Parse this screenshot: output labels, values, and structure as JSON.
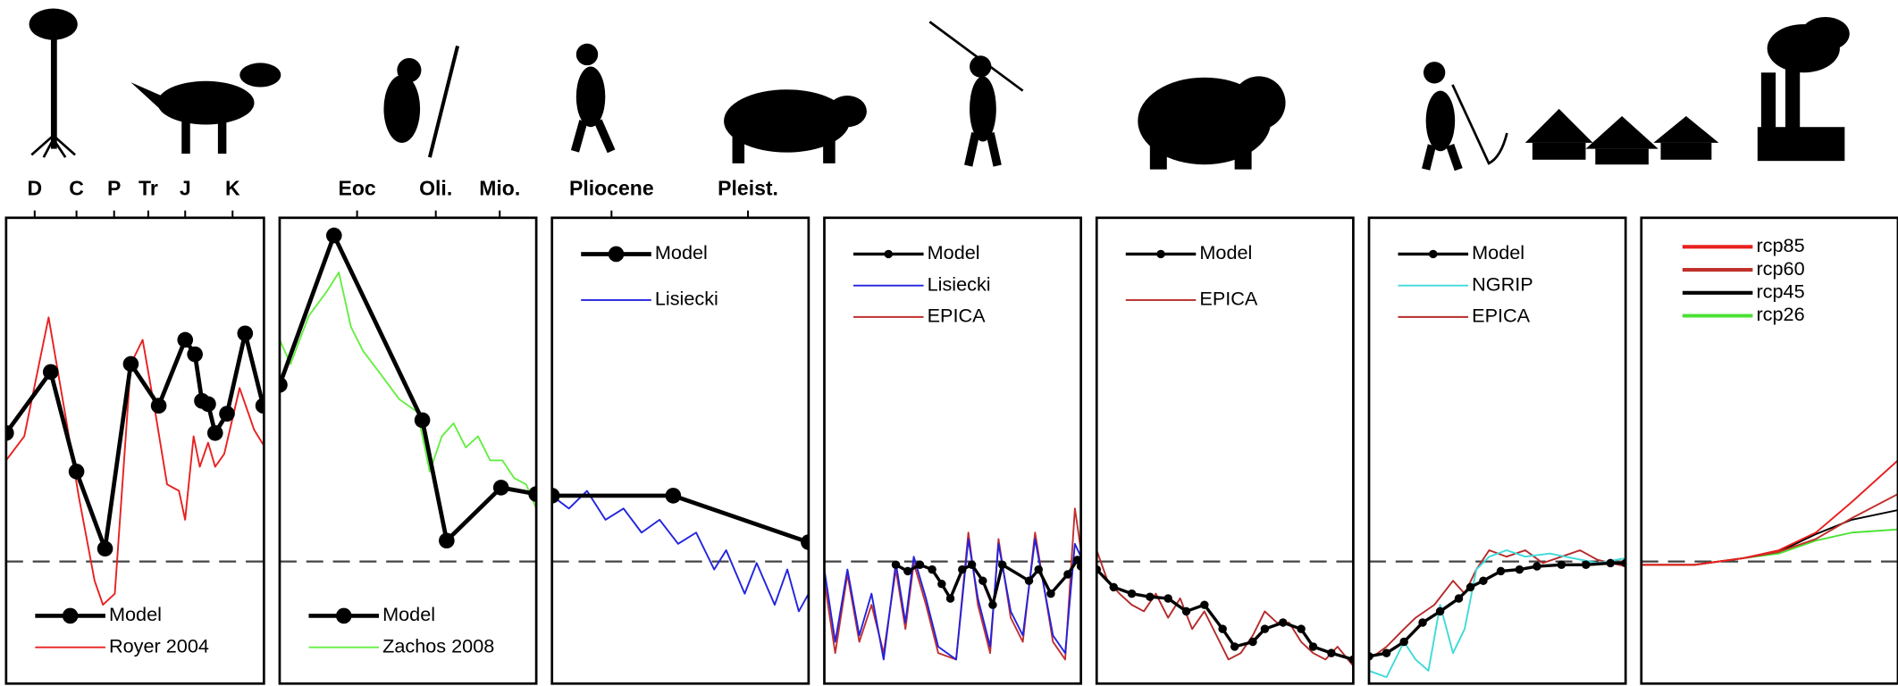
{
  "chart_data": [
    {
      "type": "line",
      "xlim": [
        430,
        60
      ],
      "ylim": [
        -7.6,
        21.4
      ],
      "hline": 0,
      "legend": "lower left",
      "xticks": [
        {
          "value": 389,
          "label": "D"
        },
        {
          "value": 329,
          "label": "C"
        },
        {
          "value": 275,
          "label": "P"
        },
        {
          "value": 226,
          "label": "Tr"
        },
        {
          "value": 173,
          "label": "J"
        },
        {
          "value": 105,
          "label": "K"
        }
      ],
      "series": [
        {
          "name": "Model",
          "color": "#000000",
          "marker": true,
          "x": [
            430,
            366,
            329,
            288,
            251,
            211,
            173,
            159,
            149,
            140,
            130,
            113,
            87,
            61
          ],
          "values": [
            8.0,
            11.8,
            5.6,
            0.8,
            12.3,
            9.7,
            13.8,
            12.9,
            10.0,
            9.8,
            8.0,
            9.2,
            14.2,
            9.7
          ]
        },
        {
          "name": "Royer 2004",
          "color": "#e82020",
          "marker": false,
          "x": [
            430,
            404,
            369,
            343,
            326,
            303,
            291,
            274,
            251,
            234,
            216,
            199,
            182,
            173,
            161,
            152,
            140,
            130,
            117,
            95,
            74,
            60
          ],
          "values": [
            6.3,
            7.8,
            15.2,
            8.6,
            4.1,
            -1.2,
            -2.7,
            -2.0,
            12.3,
            13.8,
            9.3,
            4.8,
            4.4,
            2.6,
            7.8,
            5.9,
            7.4,
            5.9,
            6.7,
            10.8,
            8.2,
            7.2
          ]
        }
      ]
    },
    {
      "type": "line",
      "xlim": [
        65,
        6
      ],
      "ylim": [
        -7.6,
        21.4
      ],
      "hline": 0,
      "legend": "lower left",
      "xticks": [
        {
          "value": 47.2,
          "label": "Eoc"
        },
        {
          "value": 29.1,
          "label": "Oli."
        },
        {
          "value": 14.4,
          "label": "Mio."
        }
      ],
      "series": [
        {
          "name": "Model",
          "color": "#000000",
          "marker": true,
          "x": [
            65,
            52.5,
            32.2,
            26.6,
            14.1,
            6.0
          ],
          "values": [
            11.0,
            20.3,
            8.8,
            1.3,
            4.6,
            4.2
          ]
        },
        {
          "name": "Zachos 2008",
          "color": "#66ee44",
          "marker": false,
          "x": [
            65,
            62.5,
            58.3,
            54.2,
            51.4,
            48.6,
            45.8,
            41.6,
            37.5,
            33.3,
            30.5,
            27.7,
            25.0,
            22.2,
            19.4,
            16.6,
            13.8,
            11.1,
            8.3,
            6.0
          ],
          "values": [
            13.8,
            12.3,
            15.3,
            16.8,
            18.0,
            14.6,
            13.1,
            11.6,
            10.1,
            9.3,
            5.6,
            7.8,
            8.6,
            7.1,
            7.8,
            6.3,
            6.3,
            5.2,
            4.8,
            3.3
          ]
        }
      ]
    },
    {
      "type": "line",
      "xlim": [
        5.3,
        0.6
      ],
      "ylim": [
        -7.6,
        21.4
      ],
      "hline": 0,
      "legend": "upper left",
      "xticks": [
        {
          "value": 4.21,
          "label": "Pliocene"
        },
        {
          "value": 1.71,
          "label": "Pleist."
        }
      ],
      "series": [
        {
          "name": "Model",
          "color": "#000000",
          "marker": true,
          "x": [
            5.3,
            3.08,
            0.6
          ],
          "values": [
            4.1,
            4.1,
            1.2
          ]
        },
        {
          "name": "Lisiecki",
          "color": "#2222dd",
          "marker": false,
          "x": [
            5.3,
            4.99,
            4.66,
            4.32,
            3.99,
            3.66,
            3.33,
            2.99,
            2.66,
            2.33,
            2.11,
            1.77,
            1.55,
            1.22,
            0.99,
            0.78,
            0.6
          ],
          "values": [
            4.1,
            3.3,
            4.4,
            2.6,
            3.3,
            1.8,
            2.6,
            1.1,
            1.8,
            -0.5,
            0.7,
            -2.0,
            -0.1,
            -2.7,
            -0.5,
            -3.1,
            -2.0
          ]
        }
      ]
    },
    {
      "type": "line",
      "xlim": [
        800,
        0
      ],
      "ylim": [
        -7.6,
        21.4
      ],
      "hline": 0,
      "legend": "upper left",
      "series": [
        {
          "name": "Model",
          "color": "#000000",
          "marker": true,
          "x": [
            577,
            540,
            502,
            464,
            434,
            407,
            370,
            340,
            306,
            275,
            245,
            162,
            132,
            94,
            41,
            11,
            0
          ],
          "values": [
            -0.2,
            -0.6,
            -0.2,
            -0.5,
            -1.4,
            -2.3,
            -0.5,
            -0.2,
            -1.2,
            -2.7,
            -0.2,
            -1.2,
            -0.5,
            -2.0,
            -0.8,
            0.1,
            -0.3
          ]
        },
        {
          "name": "Lisiecki",
          "color": "#2222dd",
          "marker": false,
          "x": [
            800,
            766,
            728,
            691,
            653,
            615,
            577,
            547,
            521,
            483,
            445,
            389,
            351,
            321,
            283,
            257,
            219,
            181,
            143,
            87,
            49,
            19,
            0
          ],
          "values": [
            -0.5,
            -5.0,
            -0.5,
            -4.6,
            -2.0,
            -6.1,
            -0.1,
            -3.8,
            0.3,
            -2.3,
            -5.3,
            -6.1,
            1.4,
            -2.3,
            -5.3,
            1.1,
            -3.1,
            -4.6,
            1.4,
            -4.6,
            -5.7,
            1.1,
            0.3
          ]
        },
        {
          "name": "EPICA",
          "color": "#c03030",
          "marker": false,
          "x": [
            800,
            766,
            728,
            691,
            653,
            615,
            577,
            547,
            521,
            483,
            445,
            389,
            351,
            321,
            283,
            257,
            219,
            181,
            143,
            87,
            49,
            19,
            0
          ],
          "values": [
            -1.2,
            -5.7,
            -0.8,
            -5.0,
            -2.7,
            -5.7,
            -0.5,
            -4.2,
            -0.1,
            -2.7,
            -5.7,
            -6.1,
            1.8,
            -2.7,
            -5.7,
            1.4,
            -3.5,
            -5.0,
            1.8,
            -5.0,
            -6.1,
            3.3,
            0.7
          ]
        }
      ]
    },
    {
      "type": "line",
      "xlim": [
        130,
        0
      ],
      "ylim": [
        -7.6,
        21.4
      ],
      "hline": 0,
      "legend": "upper left",
      "series": [
        {
          "name": "Model",
          "color": "#000000",
          "marker": true,
          "x": [
            130,
            121.4,
            112.2,
            103.0,
            93.8,
            84.6,
            75.4,
            66.2,
            60.1,
            50.9,
            44.8,
            35.6,
            26.4,
            20.3,
            11.1,
            0
          ],
          "values": [
            -0.5,
            -1.6,
            -2.0,
            -2.2,
            -2.3,
            -3.1,
            -2.7,
            -4.2,
            -5.3,
            -5.0,
            -4.2,
            -3.8,
            -4.2,
            -5.3,
            -5.7,
            -6.1
          ]
        },
        {
          "name": "EPICA",
          "color": "#b52a2a",
          "marker": false,
          "x": [
            130,
            124.5,
            118.4,
            112.2,
            106.1,
            100.0,
            93.8,
            87.7,
            81.6,
            75.4,
            69.3,
            63.2,
            57.0,
            50.9,
            44.8,
            38.7,
            32.5,
            26.4,
            20.3,
            14.1,
            8.0,
            0
          ],
          "values": [
            0.7,
            -1.2,
            -2.0,
            -2.7,
            -3.1,
            -2.0,
            -3.5,
            -2.3,
            -4.2,
            -3.1,
            -4.6,
            -6.1,
            -5.7,
            -4.6,
            -3.1,
            -3.8,
            -3.8,
            -5.0,
            -5.7,
            -6.1,
            -5.3,
            -6.5
          ]
        }
      ]
    },
    {
      "type": "line",
      "xlim": [
        22,
        0
      ],
      "ylim": [
        -7.6,
        21.4
      ],
      "hline": 0,
      "legend": "upper left",
      "series": [
        {
          "name": "Model",
          "color": "#000000",
          "marker": true,
          "x": [
            22,
            20.5,
            19.0,
            17.4,
            15.9,
            14.3,
            13.3,
            12.2,
            10.7,
            9.1,
            7.6,
            5.5,
            3.4,
            1.3,
            0
          ],
          "values": [
            -5.9,
            -5.7,
            -5.0,
            -3.8,
            -3.1,
            -2.3,
            -1.6,
            -1.2,
            -0.6,
            -0.5,
            -0.3,
            -0.2,
            -0.2,
            -0.1,
            -0.1
          ]
        },
        {
          "name": "NGRIP",
          "color": "#40d9d9",
          "marker": false,
          "x": [
            22,
            20.5,
            19.0,
            18.0,
            16.9,
            15.9,
            14.8,
            13.8,
            12.8,
            11.7,
            10.2,
            8.6,
            6.5,
            4.5,
            2.4,
            0
          ],
          "values": [
            -6.8,
            -7.2,
            -5.0,
            -6.1,
            -6.8,
            -2.7,
            -5.7,
            -4.2,
            -0.5,
            0.3,
            0.7,
            0.3,
            0.5,
            0.2,
            -0.1,
            0.2
          ]
        },
        {
          "name": "EPICA",
          "color": "#b52a2a",
          "marker": false,
          "x": [
            22,
            20.5,
            19.0,
            18.0,
            16.4,
            14.8,
            13.8,
            12.8,
            11.7,
            10.2,
            8.6,
            7.1,
            5.5,
            3.9,
            2.4,
            0
          ],
          "values": [
            -6.1,
            -5.3,
            -4.2,
            -3.5,
            -2.7,
            -1.2,
            -2.0,
            -0.5,
            0.7,
            0.3,
            0.7,
            -0.1,
            0.3,
            0.7,
            0.1,
            -0.3
          ]
        }
      ]
    },
    {
      "type": "line",
      "xlim": [
        1850,
        2100
      ],
      "ylim": [
        -7.6,
        21.4
      ],
      "hline": 0,
      "legend": "upper left",
      "series": [
        {
          "name": "rcp85",
          "color": "#e8201f",
          "marker": false,
          "x": [
            1850,
            1902,
            1949,
            1984,
            2020,
            2055,
            2100
          ],
          "values": [
            -0.2,
            -0.2,
            0.2,
            0.7,
            1.8,
            3.7,
            6.3
          ]
        },
        {
          "name": "rcp60",
          "color": "#c0302a",
          "marker": false,
          "x": [
            1850,
            1902,
            1949,
            1984,
            2020,
            2055,
            2100
          ],
          "values": [
            -0.2,
            -0.2,
            0.2,
            0.6,
            1.4,
            2.7,
            4.2
          ]
        },
        {
          "name": "rcp45",
          "color": "#000000",
          "marker": false,
          "x": [
            1850,
            1902,
            1949,
            1984,
            2020,
            2055,
            2100
          ],
          "values": [
            -0.2,
            -0.2,
            0.2,
            0.6,
            1.7,
            2.6,
            3.2
          ]
        },
        {
          "name": "rcp26",
          "color": "#4be234",
          "marker": false,
          "x": [
            1850,
            1902,
            1949,
            1984,
            2020,
            2055,
            2100
          ],
          "values": [
            -0.2,
            -0.2,
            0.2,
            0.5,
            1.3,
            1.8,
            2.0
          ]
        }
      ]
    }
  ]
}
